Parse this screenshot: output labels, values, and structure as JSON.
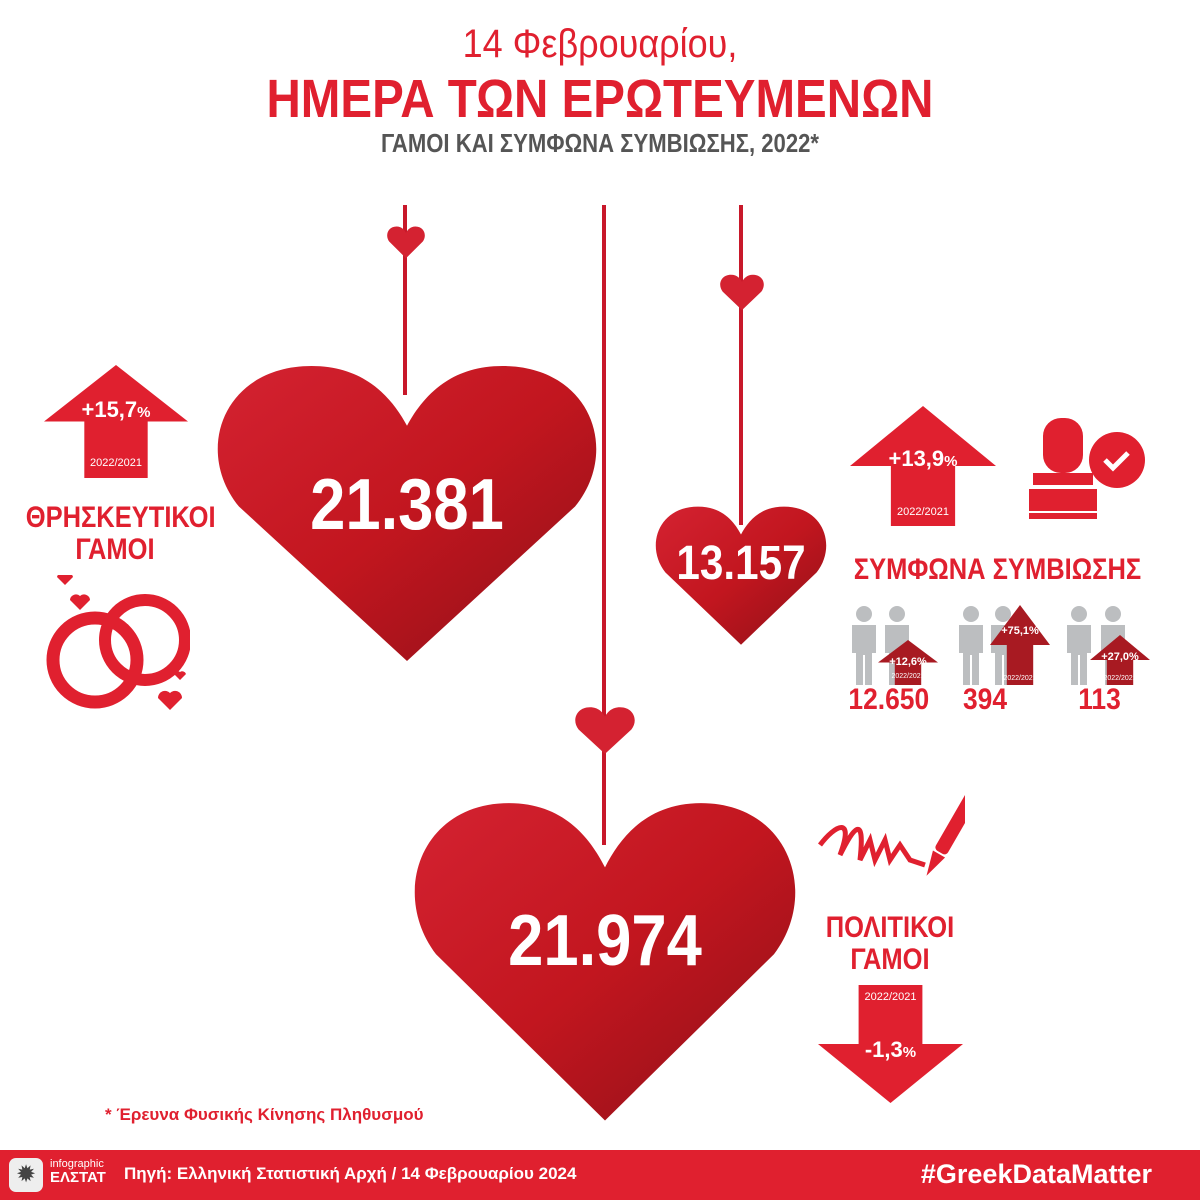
{
  "header": {
    "line1": "14 Φεβρουαρίου,",
    "line2": "ΗΜΕΡΑ ΤΩΝ ΕΡΩΤΕΥΜΕΝΩΝ",
    "line3": "ΓΑΜΟΙ ΚΑΙ ΣΥΜΦΩΝΑ ΣΥΜΒΙΩΣΗΣ, 2022*"
  },
  "religious": {
    "label_line1": "ΘΡΗΣΚΕΥΤΙΚΟΙ",
    "label_line2": "ΓΑΜΟΙ",
    "value": "21.381",
    "change": "+15,7",
    "pct": "%",
    "period": "2022/2021",
    "direction": "up",
    "icon": "wedding-rings-icon"
  },
  "cohabitation": {
    "label": "ΣΥΜΦΩΝΑ ΣΥΜΒΙΩΣΗΣ",
    "value": "13.157",
    "change": "+13,9",
    "pct": "%",
    "period": "2022/2021",
    "direction": "up",
    "icon": "stamp-icon",
    "groups": [
      {
        "icon": "man-woman-couple-icon",
        "value": "12.650",
        "change": "+12,6%",
        "period": "2022/2021"
      },
      {
        "icon": "two-men-couple-icon",
        "value": "394",
        "change": "+75,1%",
        "period": "2022/2021"
      },
      {
        "icon": "two-women-couple-icon",
        "value": "113",
        "change": "+27,0%",
        "period": "2022/2021"
      }
    ]
  },
  "civil": {
    "label_line1": "ΠΟΛΙΤΙΚΟΙ",
    "label_line2": "ΓΑΜΟΙ",
    "value": "21.974",
    "change": "-1,3",
    "pct": "%",
    "period": "2022/2021",
    "direction": "down",
    "icon": "signature-pen-icon"
  },
  "footnote": "*  Έρευνα Φυσικής Κίνησης Πληθυσμού",
  "footer": {
    "logo_line1": "infographic",
    "logo_line2": "ΕΛΣΤΑΤ",
    "source": "Πηγή: Ελληνική Στατιστική Αρχή  / 14 Φεβρουαρίου 2024",
    "hashtag": "#GreekDataMatter"
  },
  "colors": {
    "accent": "#e0202f",
    "heart": "#c8182a",
    "dark_arrow": "#a81a22",
    "people": "#bcbec0"
  }
}
